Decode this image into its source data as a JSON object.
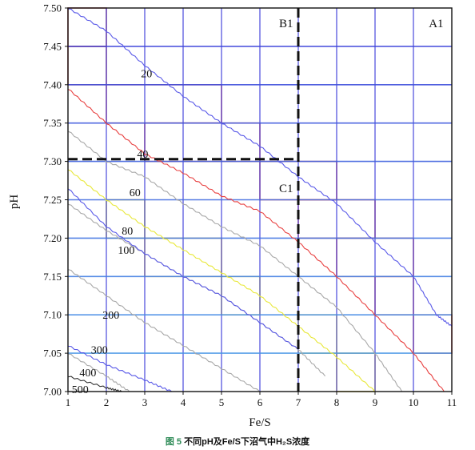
{
  "chart_data": {
    "type": "line",
    "xlabel": "Fe/S",
    "ylabel": "pH",
    "xlim": [
      1,
      11
    ],
    "ylim": [
      7.0,
      7.5
    ],
    "x_ticks": [
      "1",
      "2",
      "3",
      "4",
      "5",
      "6",
      "7",
      "8",
      "9",
      "10",
      "11"
    ],
    "y_ticks": [
      "7.00",
      "7.05",
      "7.10",
      "7.15",
      "7.20",
      "7.25",
      "7.30",
      "7.35",
      "7.40",
      "7.45",
      "7.50"
    ],
    "grid": true,
    "colors": {
      "grid_top": "#3a3ad8",
      "grid_bottom": "#4aa0e8",
      "frame": "#111111"
    },
    "series": [
      {
        "name": "20",
        "color": "#5a5ae8",
        "label_at": [
          2.9,
          7.415
        ],
        "points": [
          [
            1.0,
            7.5
          ],
          [
            2.0,
            7.47
          ],
          [
            3.0,
            7.425
          ],
          [
            4.0,
            7.385
          ],
          [
            5.0,
            7.35
          ],
          [
            6.0,
            7.32
          ],
          [
            7.0,
            7.28
          ],
          [
            8.0,
            7.245
          ],
          [
            9.0,
            7.195
          ],
          [
            10.0,
            7.15
          ],
          [
            10.6,
            7.1
          ],
          [
            11.0,
            7.085
          ]
        ]
      },
      {
        "name": "40",
        "color": "#e84040",
        "label_at": [
          2.8,
          7.31
        ],
        "points": [
          [
            1.0,
            7.395
          ],
          [
            2.0,
            7.35
          ],
          [
            3.0,
            7.31
          ],
          [
            4.0,
            7.285
          ],
          [
            5.0,
            7.255
          ],
          [
            6.0,
            7.235
          ],
          [
            7.0,
            7.195
          ],
          [
            8.0,
            7.15
          ],
          [
            9.0,
            7.1
          ],
          [
            10.0,
            7.05
          ],
          [
            10.8,
            7.0
          ]
        ]
      },
      {
        "name": "",
        "color": "#a8a8a8",
        "label_at": null,
        "points": [
          [
            1.0,
            7.34
          ],
          [
            2.0,
            7.3
          ],
          [
            3.0,
            7.28
          ],
          [
            4.0,
            7.245
          ],
          [
            5.0,
            7.215
          ],
          [
            6.0,
            7.19
          ],
          [
            7.0,
            7.15
          ],
          [
            8.0,
            7.11
          ],
          [
            9.0,
            7.05
          ],
          [
            9.7,
            7.0
          ]
        ]
      },
      {
        "name": "60",
        "color": "#e8e83a",
        "label_at": [
          2.6,
          7.26
        ],
        "points": [
          [
            1.0,
            7.29
          ],
          [
            2.0,
            7.25
          ],
          [
            3.0,
            7.215
          ],
          [
            4.0,
            7.185
          ],
          [
            5.0,
            7.155
          ],
          [
            6.0,
            7.125
          ],
          [
            7.0,
            7.085
          ],
          [
            8.0,
            7.045
          ],
          [
            9.0,
            7.0
          ]
        ]
      },
      {
        "name": "80",
        "color": "#a8a8a8",
        "label_at": [
          2.4,
          7.21
        ],
        "points": [
          [
            1.0,
            7.245
          ],
          [
            2.0,
            7.21
          ],
          [
            3.0,
            7.18
          ],
          [
            4.0,
            7.15
          ],
          [
            5.0,
            7.125
          ],
          [
            6.0,
            7.09
          ],
          [
            7.0,
            7.055
          ],
          [
            7.7,
            7.02
          ]
        ]
      },
      {
        "name": "100",
        "color": "#5a5ae8",
        "label_at": [
          2.3,
          7.185
        ],
        "points": [
          [
            1.0,
            7.265
          ],
          [
            2.0,
            7.215
          ],
          [
            3.0,
            7.18
          ],
          [
            4.0,
            7.15
          ],
          [
            5.0,
            7.125
          ],
          [
            6.0,
            7.09
          ],
          [
            7.0,
            7.055
          ]
        ]
      },
      {
        "name": "200",
        "color": "#a8a8a8",
        "label_at": [
          1.9,
          7.1
        ],
        "points": [
          [
            1.0,
            7.16
          ],
          [
            2.0,
            7.125
          ],
          [
            3.0,
            7.09
          ],
          [
            4.0,
            7.06
          ],
          [
            5.0,
            7.03
          ],
          [
            6.0,
            7.0
          ]
        ]
      },
      {
        "name": "300",
        "color": "#5a5ae8",
        "label_at": [
          1.6,
          7.055
        ],
        "points": [
          [
            1.0,
            7.06
          ],
          [
            2.0,
            7.035
          ],
          [
            3.0,
            7.015
          ],
          [
            3.7,
            7.0
          ]
        ]
      },
      {
        "name": "400",
        "color": "#a8a8a8",
        "label_at": [
          1.3,
          7.025
        ],
        "points": [
          [
            1.0,
            7.05
          ],
          [
            2.0,
            7.02
          ],
          [
            2.6,
            7.0
          ]
        ]
      },
      {
        "name": "500",
        "color": "#333333",
        "label_at": [
          1.1,
          7.003
        ],
        "points": [
          [
            1.0,
            7.02
          ],
          [
            2.0,
            7.005
          ],
          [
            2.4,
            7.0
          ]
        ]
      }
    ],
    "cells": [
      {
        "x": [
          1,
          2
        ],
        "y": [
          7.45,
          7.5
        ],
        "color": "#c84848"
      },
      {
        "x": [
          1,
          2
        ],
        "y": [
          7.4,
          7.45
        ],
        "color": "#c84848"
      },
      {
        "x": [
          2,
          5
        ],
        "y": [
          7.35,
          7.4
        ],
        "color": "#e05050"
      },
      {
        "x": [
          3,
          6
        ],
        "y": [
          7.3,
          7.35
        ],
        "color": "#e05050"
      },
      {
        "x": [
          6,
          8
        ],
        "y": [
          7.25,
          7.3
        ],
        "color": "#e05050"
      },
      {
        "x": [
          7,
          9
        ],
        "y": [
          7.2,
          7.25
        ],
        "color": "#e05050"
      },
      {
        "x": [
          8,
          10
        ],
        "y": [
          7.15,
          7.2
        ],
        "color": "#e05050"
      },
      {
        "x": [
          9,
          10
        ],
        "y": [
          7.1,
          7.15
        ],
        "color": "#e05050"
      },
      {
        "x": [
          10,
          11
        ],
        "y": [
          7.05,
          7.1
        ],
        "color": "#e05050"
      },
      {
        "x": [
          2,
          3
        ],
        "y": [
          7.2,
          7.25
        ],
        "color": "#c8c83a"
      },
      {
        "x": [
          3,
          5
        ],
        "y": [
          7.15,
          7.2
        ],
        "color": "#e8c83a"
      },
      {
        "x": [
          5,
          6
        ],
        "y": [
          7.1,
          7.15
        ],
        "color": "#e8e83a"
      },
      {
        "x": [
          7,
          8
        ],
        "y": [
          7.05,
          7.1
        ],
        "color": "#e8e83a"
      },
      {
        "x": [
          8,
          9
        ],
        "y": [
          7.0,
          7.05
        ],
        "color": "#e8c83a"
      }
    ],
    "annotations": [
      {
        "text": "B1",
        "x": 6.5,
        "y": 7.48
      },
      {
        "text": "A1",
        "x": 10.4,
        "y": 7.48
      },
      {
        "text": "C1",
        "x": 6.5,
        "y": 7.265
      }
    ],
    "boundary": {
      "vertical_x": 7,
      "horizontal_y": 7.303,
      "style": "dashed",
      "color": "#111111"
    }
  },
  "caption": {
    "figure": "图 5",
    "text": "不同pH及Fe/S下沼气中H₂S浓度"
  }
}
